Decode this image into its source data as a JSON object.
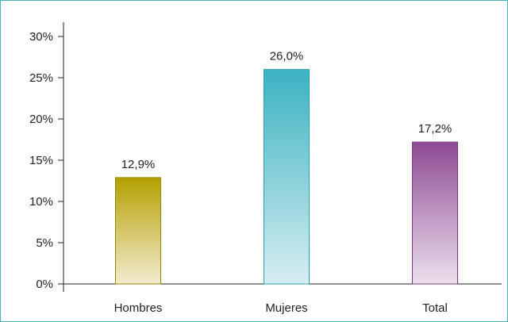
{
  "chart_data": {
    "type": "bar",
    "categories": [
      "Hombres",
      "Mujeres",
      "Total"
    ],
    "values": [
      12.9,
      26.0,
      17.2
    ],
    "value_labels": [
      "12,9%",
      "26,0%",
      "17,2%"
    ],
    "y_ticks": [
      0,
      5,
      10,
      15,
      20,
      25,
      30
    ],
    "y_tick_labels": [
      "0%",
      "5%",
      "10%",
      "15%",
      "20%",
      "25%",
      "30%"
    ],
    "ylim": [
      0,
      30
    ],
    "title": "",
    "xlabel": "",
    "ylabel": "",
    "grid": false,
    "legend": "none",
    "colors": [
      {
        "top": "#b5a000",
        "bottom": "#f2ecd0",
        "stroke": "#9a8800"
      },
      {
        "top": "#3bb2c2",
        "bottom": "#d6eef1",
        "stroke": "#2aa0b0"
      },
      {
        "top": "#8e4a94",
        "bottom": "#ece0ee",
        "stroke": "#7a3a82"
      }
    ],
    "axis_color": "#222222",
    "frame_color": "#4fb3bf"
  }
}
